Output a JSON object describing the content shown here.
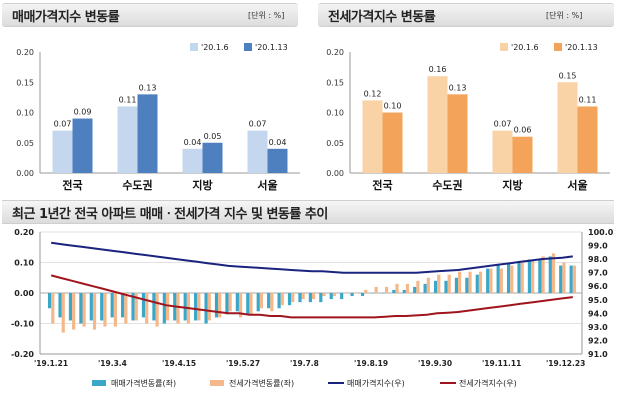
{
  "chart_data": [
    {
      "type": "bar",
      "title": "매매가격지수 변동률",
      "unit_label": "[단위 : %]",
      "categories": [
        "전국",
        "수도권",
        "지방",
        "서울"
      ],
      "series": [
        {
          "name": "'20.1.6",
          "values": [
            0.07,
            0.11,
            0.04,
            0.07
          ],
          "color": "#c5d7ee"
        },
        {
          "name": "'20.1.13",
          "values": [
            0.09,
            0.13,
            0.05,
            0.04
          ],
          "color": "#4e80c0"
        }
      ],
      "ylim": [
        0,
        0.2
      ],
      "yticks": [
        "0.00",
        "0.05",
        "0.10",
        "0.15",
        "0.20"
      ],
      "legend": "top-right"
    },
    {
      "type": "bar",
      "title": "전세가격지수 변동률",
      "unit_label": "[단위 : %]",
      "categories": [
        "전국",
        "수도권",
        "지방",
        "서울"
      ],
      "series": [
        {
          "name": "'20.1.6",
          "values": [
            0.12,
            0.16,
            0.07,
            0.15
          ],
          "color": "#f9d2a6"
        },
        {
          "name": "'20.1.13",
          "values": [
            0.1,
            0.13,
            0.06,
            0.11
          ],
          "color": "#f4a45a"
        }
      ],
      "ylim": [
        0,
        0.2
      ],
      "yticks": [
        "0.00",
        "0.05",
        "0.10",
        "0.15",
        "0.20"
      ],
      "legend": "top-right"
    },
    {
      "type": "bar+line",
      "title": "최근 1년간 전국 아파트 매매ㆍ전세가격 지수 및 변동률 추이",
      "x_labels": [
        "'19.1.21",
        "'19.3.4",
        "'19.4.15",
        "'19.5.27",
        "'19.7.8",
        "'19.8.19",
        "'19.9.30",
        "'19.11.11",
        "'19.12.23"
      ],
      "y_left": {
        "lim": [
          -0.2,
          0.2
        ],
        "ticks": [
          "-0.20",
          "-0.10",
          "0.00",
          "0.10",
          "0.20"
        ]
      },
      "y_right": {
        "lim": [
          91.0,
          100.0
        ],
        "ticks": [
          "91.0",
          "92.0",
          "93.0",
          "94.0",
          "95.0",
          "96.0",
          "97.0",
          "98.0",
          "99.0",
          "100.0"
        ]
      },
      "legend": [
        {
          "name": "매매가격변동률(좌)",
          "color": "#3aa7c9",
          "kind": "bar"
        },
        {
          "name": "전세가격변동률(좌)",
          "color": "#f4b88a",
          "kind": "bar"
        },
        {
          "name": "매매가격지수(우)",
          "color": "#1a237e",
          "kind": "line"
        },
        {
          "name": "전세가격지수(우)",
          "color": "#a0141e",
          "kind": "line"
        }
      ],
      "sale_rate": [
        -0.05,
        -0.08,
        -0.09,
        -0.1,
        -0.09,
        -0.09,
        -0.08,
        -0.08,
        -0.09,
        -0.08,
        -0.09,
        -0.1,
        -0.09,
        -0.09,
        -0.09,
        -0.1,
        -0.08,
        -0.07,
        -0.06,
        -0.07,
        -0.06,
        -0.05,
        -0.05,
        -0.04,
        -0.03,
        -0.03,
        -0.03,
        -0.02,
        -0.02,
        -0.01,
        -0.01,
        0.0,
        0.0,
        0.01,
        0.01,
        0.02,
        0.03,
        0.04,
        0.04,
        0.05,
        0.05,
        0.06,
        0.08,
        0.09,
        0.1,
        0.1,
        0.11,
        0.11,
        0.12,
        0.09,
        0.09
      ],
      "jeonse_rate": [
        -0.1,
        -0.13,
        -0.12,
        -0.11,
        -0.12,
        -0.11,
        -0.11,
        -0.1,
        -0.09,
        -0.1,
        -0.11,
        -0.09,
        -0.1,
        -0.1,
        -0.09,
        -0.09,
        -0.08,
        -0.06,
        -0.08,
        -0.07,
        -0.05,
        -0.06,
        -0.04,
        -0.03,
        -0.02,
        -0.02,
        -0.01,
        -0.01,
        0.0,
        0.0,
        0.01,
        0.02,
        0.02,
        0.03,
        0.03,
        0.04,
        0.05,
        0.06,
        0.06,
        0.07,
        0.07,
        0.07,
        0.08,
        0.08,
        0.09,
        0.1,
        0.11,
        0.12,
        0.13,
        0.1,
        0.09
      ],
      "sale_index": [
        99.2,
        99.1,
        99.0,
        98.9,
        98.8,
        98.7,
        98.6,
        98.5,
        98.4,
        98.3,
        98.2,
        98.1,
        98.0,
        97.9,
        97.8,
        97.7,
        97.6,
        97.5,
        97.45,
        97.4,
        97.35,
        97.3,
        97.25,
        97.2,
        97.15,
        97.1,
        97.1,
        97.05,
        97.0,
        97.0,
        97.0,
        97.0,
        97.0,
        97.0,
        97.0,
        97.0,
        97.05,
        97.1,
        97.15,
        97.2,
        97.3,
        97.4,
        97.5,
        97.6,
        97.7,
        97.8,
        97.9,
        98.0,
        98.05,
        98.1,
        98.2
      ],
      "jeonse_index": [
        96.8,
        96.6,
        96.4,
        96.2,
        96.0,
        95.8,
        95.6,
        95.4,
        95.2,
        95.0,
        94.8,
        94.6,
        94.5,
        94.4,
        94.3,
        94.2,
        94.1,
        94.0,
        94.0,
        93.9,
        93.9,
        93.8,
        93.8,
        93.7,
        93.7,
        93.7,
        93.7,
        93.7,
        93.7,
        93.7,
        93.7,
        93.7,
        93.75,
        93.8,
        93.8,
        93.85,
        93.9,
        94.0,
        94.05,
        94.1,
        94.2,
        94.3,
        94.4,
        94.5,
        94.6,
        94.7,
        94.8,
        94.9,
        95.0,
        95.1,
        95.2
      ]
    }
  ]
}
